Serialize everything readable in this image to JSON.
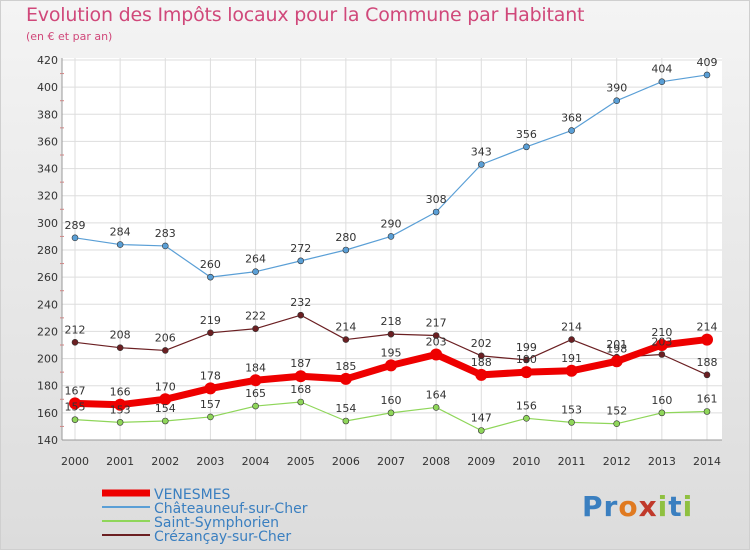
{
  "title": "Evolution des Impôts locaux pour la Commune par Habitant",
  "subtitle": "(en € et par an)",
  "logo_text": "Proxiti",
  "chart_data": {
    "type": "line",
    "title": "Evolution des Impôts locaux pour la Commune par Habitant",
    "subtitle": "(en € et par an)",
    "x": [
      2000,
      2001,
      2002,
      2003,
      2004,
      2005,
      2006,
      2007,
      2008,
      2009,
      2010,
      2011,
      2012,
      2013,
      2014
    ],
    "ylim": [
      140,
      420
    ],
    "yticks": [
      140,
      160,
      180,
      200,
      220,
      240,
      260,
      280,
      300,
      320,
      340,
      360,
      380,
      400,
      420
    ],
    "grid": true,
    "legend": "bottom-left",
    "series": [
      {
        "name": "VENESMES",
        "color": "#ee0000",
        "bold": true,
        "values": [
          167,
          166,
          170,
          178,
          184,
          187,
          185,
          195,
          203,
          188,
          190,
          191,
          198,
          210,
          214
        ]
      },
      {
        "name": "Châteauneuf-sur-Cher",
        "color": "#5a9fd6",
        "values": [
          289,
          284,
          283,
          260,
          264,
          272,
          280,
          290,
          308,
          343,
          356,
          368,
          390,
          404,
          409
        ]
      },
      {
        "name": "Saint-Symphorien",
        "color": "#8fd65a",
        "values": [
          155,
          153,
          154,
          157,
          165,
          168,
          154,
          160,
          164,
          147,
          156,
          153,
          152,
          160,
          161
        ]
      },
      {
        "name": "Crézançay-sur-Cher",
        "color": "#6b1f22",
        "values": [
          212,
          208,
          206,
          219,
          222,
          232,
          214,
          218,
          217,
          202,
          199,
          214,
          201,
          203,
          188
        ]
      }
    ]
  }
}
